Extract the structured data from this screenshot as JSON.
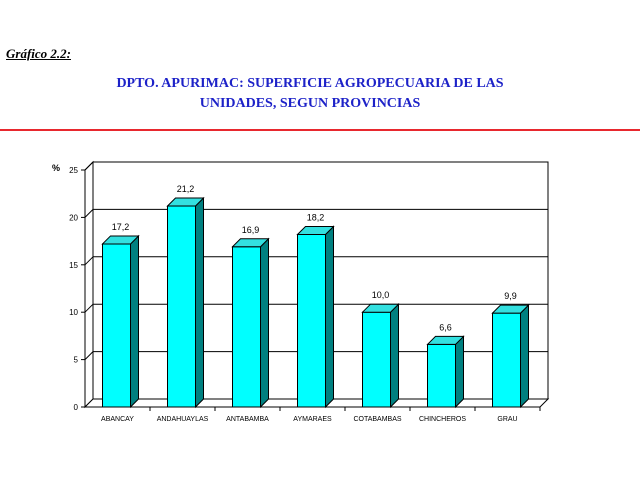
{
  "header": {
    "figure_label": "Gráfico 2.2:",
    "title_line1": "DPTO. APURIMAC: SUPERFICIE AGROPECUARIA DE LAS",
    "title_line2": "UNIDADES, SEGUN PROVINCIAS"
  },
  "chart_data": {
    "type": "bar",
    "title": "DPTO. APURIMAC: SUPERFICIE AGROPECUARIA DE LAS UNIDADES, SEGUN PROVINCIAS",
    "ylabel": "%",
    "xlabel": "",
    "categories": [
      "ABANCAY",
      "ANDAHUAYLAS",
      "ANTABAMBA",
      "AYMARAES",
      "COTABAMBAS",
      "CHINCHEROS",
      "GRAU"
    ],
    "values": [
      17.2,
      21.2,
      16.9,
      18.2,
      10.0,
      6.6,
      9.9
    ],
    "value_labels": [
      "17,2",
      "21,2",
      "16,9",
      "18,2",
      "10,0",
      "6,6",
      "9,9"
    ],
    "ylim": [
      0,
      25
    ],
    "yticks": [
      0,
      5,
      10,
      15,
      20,
      25
    ],
    "grid": true,
    "legend": "none",
    "colors": {
      "bar_front": "#00ffff",
      "bar_side": "#008080",
      "bar_top": "#33e0e0",
      "grid": "#000000"
    }
  }
}
